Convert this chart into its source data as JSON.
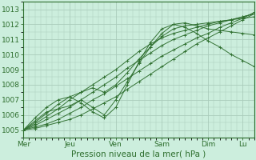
{
  "title": "",
  "xlabel": "Pression niveau de la mer( hPa )",
  "ylabel": "",
  "bg_color": "#cceedd",
  "grid_color": "#aaccbb",
  "line_color": "#2d6e2d",
  "ylim": [
    1004.5,
    1013.5
  ],
  "xlim": [
    0,
    120
  ],
  "yticks": [
    1005,
    1006,
    1007,
    1008,
    1009,
    1010,
    1011,
    1012,
    1013
  ],
  "xtick_labels": [
    "Mer",
    "Jeu",
    "Ven",
    "Sam",
    "Dim",
    "Lu"
  ],
  "xtick_positions": [
    0,
    24,
    48,
    72,
    96,
    114
  ],
  "lines": [
    [
      0,
      1005.0,
      6,
      1005.1,
      12,
      1005.3,
      18,
      1005.5,
      24,
      1005.7,
      30,
      1006.0,
      36,
      1006.4,
      42,
      1006.8,
      48,
      1007.2,
      54,
      1007.7,
      60,
      1008.2,
      66,
      1008.7,
      72,
      1009.2,
      78,
      1009.7,
      84,
      1010.2,
      90,
      1010.7,
      96,
      1011.1,
      102,
      1011.5,
      108,
      1011.9,
      114,
      1012.3,
      120,
      1012.7
    ],
    [
      0,
      1005.0,
      6,
      1005.2,
      12,
      1005.4,
      18,
      1005.7,
      24,
      1006.1,
      30,
      1006.5,
      36,
      1007.0,
      42,
      1007.4,
      48,
      1007.9,
      54,
      1008.4,
      60,
      1008.9,
      66,
      1009.4,
      72,
      1009.9,
      78,
      1010.3,
      84,
      1010.7,
      90,
      1011.1,
      96,
      1011.4,
      102,
      1011.8,
      108,
      1012.1,
      114,
      1012.4,
      120,
      1012.8
    ],
    [
      0,
      1005.0,
      6,
      1005.3,
      12,
      1005.7,
      18,
      1006.1,
      24,
      1006.5,
      30,
      1007.0,
      36,
      1007.5,
      42,
      1008.0,
      48,
      1008.5,
      54,
      1009.1,
      60,
      1009.6,
      66,
      1010.1,
      72,
      1010.6,
      78,
      1011.0,
      84,
      1011.3,
      90,
      1011.6,
      96,
      1011.9,
      102,
      1012.1,
      108,
      1012.3,
      114,
      1012.5,
      120,
      1012.7
    ],
    [
      0,
      1005.0,
      6,
      1005.4,
      12,
      1005.9,
      18,
      1006.4,
      24,
      1007.0,
      30,
      1007.5,
      36,
      1008.0,
      42,
      1008.5,
      48,
      1009.0,
      54,
      1009.6,
      60,
      1010.2,
      66,
      1010.7,
      72,
      1011.1,
      78,
      1011.4,
      84,
      1011.6,
      90,
      1011.8,
      96,
      1012.0,
      102,
      1012.2,
      108,
      1012.3,
      114,
      1012.5,
      120,
      1012.7
    ],
    [
      0,
      1005.0,
      6,
      1005.5,
      12,
      1006.1,
      18,
      1006.7,
      24,
      1007.2,
      30,
      1007.5,
      36,
      1007.8,
      42,
      1007.5,
      48,
      1008.0,
      54,
      1008.8,
      60,
      1009.7,
      66,
      1010.5,
      72,
      1011.2,
      78,
      1011.7,
      84,
      1011.9,
      90,
      1012.0,
      96,
      1012.1,
      102,
      1012.2,
      108,
      1012.3,
      114,
      1012.4,
      120,
      1012.5
    ],
    [
      0,
      1005.0,
      6,
      1005.6,
      12,
      1006.2,
      18,
      1006.4,
      24,
      1006.6,
      30,
      1007.0,
      36,
      1006.5,
      42,
      1006.0,
      48,
      1007.0,
      54,
      1008.2,
      60,
      1009.4,
      66,
      1010.5,
      72,
      1011.4,
      78,
      1012.0,
      84,
      1012.1,
      90,
      1011.9,
      96,
      1011.7,
      102,
      1011.6,
      108,
      1011.5,
      114,
      1011.4,
      120,
      1011.3
    ],
    [
      0,
      1005.0,
      6,
      1005.8,
      12,
      1006.5,
      18,
      1007.0,
      24,
      1007.2,
      30,
      1006.8,
      36,
      1006.2,
      42,
      1005.8,
      48,
      1006.5,
      54,
      1008.0,
      60,
      1009.5,
      66,
      1010.8,
      72,
      1011.7,
      78,
      1012.0,
      84,
      1011.8,
      90,
      1011.4,
      96,
      1010.9,
      102,
      1010.5,
      108,
      1010.0,
      114,
      1009.6,
      120,
      1009.2
    ]
  ]
}
